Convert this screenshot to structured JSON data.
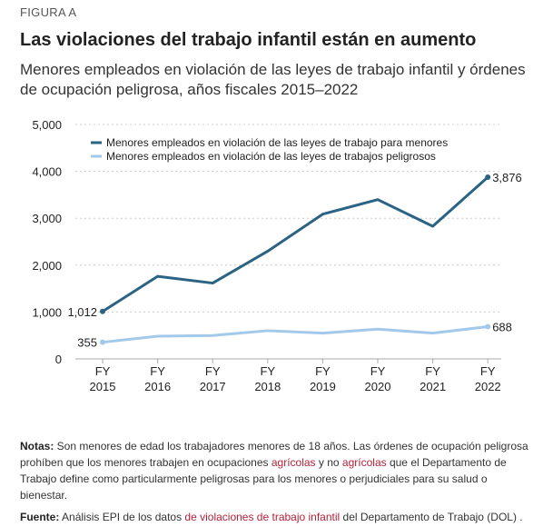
{
  "figure_label": "FIGURA A",
  "chart_data": {
    "type": "line",
    "title": "Las violaciones del trabajo infantil están en aumento",
    "subtitle": "Menores empleados en violación de las leyes de trabajo infantil y órdenes de ocupación peligrosa, años fiscales 2015–2022",
    "categories": [
      "FY 2015",
      "FY 2016",
      "FY 2017",
      "FY 2018",
      "FY 2019",
      "FY 2020",
      "FY 2021",
      "FY 2022"
    ],
    "ylim": [
      0,
      5000
    ],
    "yticks": [
      "0",
      "1,000",
      "2,000",
      "3,000",
      "4,000",
      "5,000"
    ],
    "grid": true,
    "legend_position": "top-left",
    "series": [
      {
        "name": "Menores empleados en violación de las leyes de trabajo para menores",
        "color": "#2a6384",
        "values": [
          1012,
          1761,
          1617,
          2297,
          3087,
          3398,
          2829,
          3876
        ],
        "labels": {
          "first": "1,012",
          "last": "3,876"
        }
      },
      {
        "name": "Menores empleados en violación de las leyes de trabajos peligrosos",
        "color": "#a3c9ea",
        "values": [
          355,
          485,
          499,
          602,
          550,
          635,
          550,
          688
        ],
        "labels": {
          "first": "355",
          "last": "688"
        }
      }
    ]
  },
  "notes": {
    "label": "Notas:",
    "t1": " Son menores de edad los trabajadores menores de 18 años. Las órdenes de ocupación peligrosa prohíben que los menores trabajen en ocupaciones ",
    "link1": "agrícolas",
    "t2": " y no ",
    "link2": "agrícolas",
    "t3": " que el Departamento de Trabajo define como particularmente peligrosas para los menores o perjudiciales para su salud o bienestar."
  },
  "source": {
    "label": "Fuente:",
    "t1": " Análisis EPI de los datos ",
    "link": "de violaciones de trabajo infantil",
    "t2": " del Departamento de Trabajo (DOL) ."
  }
}
